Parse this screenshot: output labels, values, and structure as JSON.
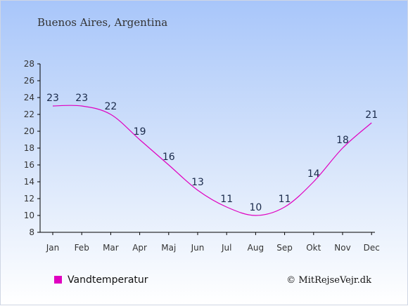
{
  "chart_data": {
    "type": "line",
    "title": "Buenos Aires, Argentina",
    "categories": [
      "Jan",
      "Feb",
      "Mar",
      "Apr",
      "Maj",
      "Jun",
      "Jul",
      "Aug",
      "Sep",
      "Okt",
      "Nov",
      "Dec"
    ],
    "series": [
      {
        "name": "Vandtemperatur",
        "values": [
          23,
          23,
          22,
          19,
          16,
          13,
          11,
          10,
          11,
          14,
          18,
          21
        ]
      }
    ],
    "yticks": [
      8,
      10,
      12,
      14,
      16,
      18,
      20,
      22,
      24,
      26,
      28
    ],
    "ylim": [
      8,
      28
    ],
    "grid": false,
    "legend": "bottom-left",
    "colors": {
      "line": "#e000c0",
      "axis": "#000000",
      "text": "#333333",
      "label": "#1a2a4a",
      "background_top": "#a8c6fa"
    }
  },
  "credit": "© MitRejseVejr.dk"
}
